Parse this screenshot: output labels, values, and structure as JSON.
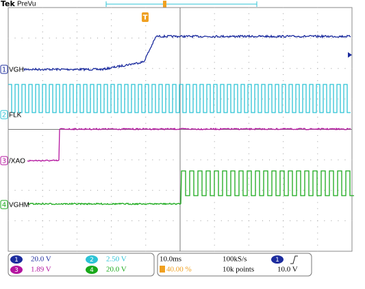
{
  "header": {
    "brand": "Tek",
    "mode": "PreVu"
  },
  "channels": [
    {
      "number": "1",
      "label": "VGH",
      "scale": "20.0 V",
      "color": "#1c2c9e"
    },
    {
      "number": "2",
      "label": "FLK",
      "scale": "2.50 V",
      "color": "#2cc3d5"
    },
    {
      "number": "3",
      "label": "/XAO",
      "scale": "1.89 V",
      "color": "#b4149f"
    },
    {
      "number": "4",
      "label": "VGHM",
      "scale": "20.0 V",
      "color": "#19a91a"
    }
  ],
  "timebase": {
    "scale": "10.0ms",
    "sample_rate": "100kS/s",
    "trigger_position": "40.00 %",
    "record_length": "10k points"
  },
  "trigger": {
    "source": "1",
    "level": "10.0 V"
  }
}
